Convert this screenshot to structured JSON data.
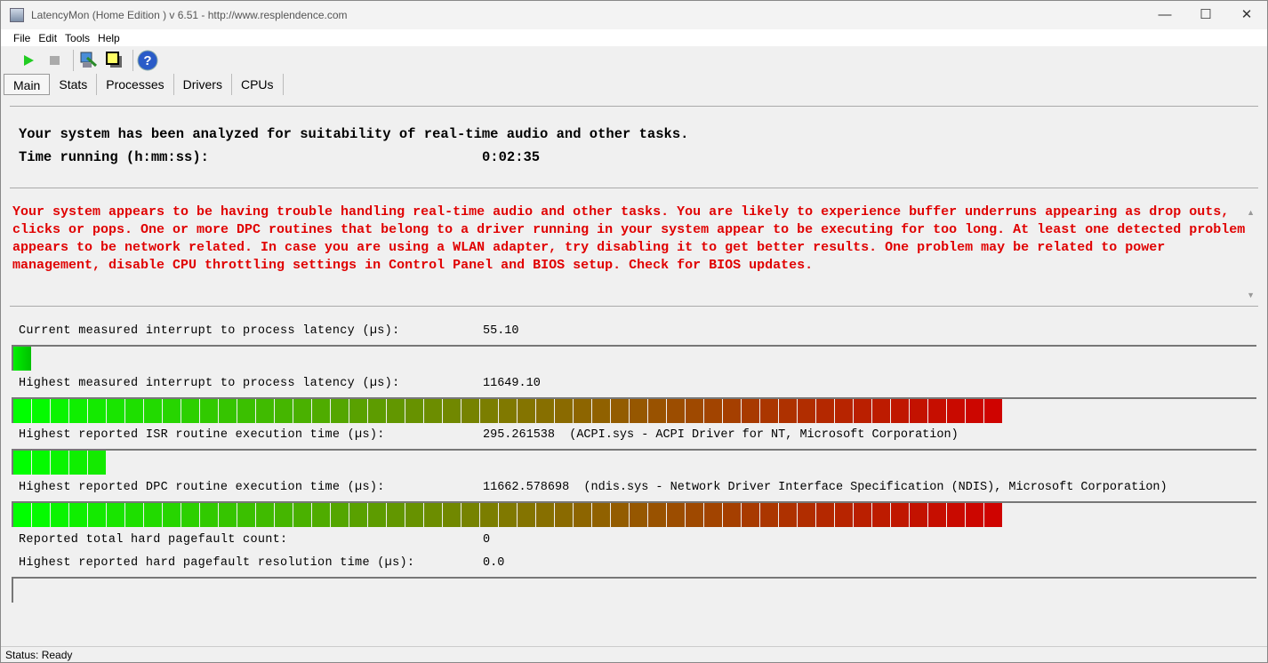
{
  "window": {
    "title": "LatencyMon  (Home Edition )  v 6.51 - http://www.resplendence.com",
    "minimize": "—",
    "maximize": "☐",
    "close": "✕"
  },
  "menu": [
    "File",
    "Edit",
    "Tools",
    "Help"
  ],
  "toolbar": {
    "icons": [
      "play-icon",
      "stop-icon",
      "analyze-icon",
      "windows-icon",
      "help-icon"
    ]
  },
  "tabs": [
    "Main",
    "Stats",
    "Processes",
    "Drivers",
    "CPUs"
  ],
  "active_tab": "Main",
  "summary": {
    "line1": "Your system has been analyzed for suitability of real-time audio and other tasks.",
    "time_label": "Time running (h:mm:ss):",
    "time_value": "0:02:35"
  },
  "message": "Your system appears to be having trouble handling real-time audio and other tasks. You are likely to experience buffer underruns appearing as drop outs, clicks or pops. One or more DPC routines that belong to a driver running in your system appear to be executing for too long. At least one detected problem appears to be network related. In case you are using a WLAN adapter, try disabling it to get better results. One problem may be related to power management, disable CPU throttling settings in Control Panel and BIOS setup. Check for BIOS updates.",
  "metrics": [
    {
      "label": "Current measured interrupt to process latency (µs):",
      "value": "55.10",
      "level": 0.014
    },
    {
      "label": "Highest measured interrupt to process latency (µs):",
      "value": "11649.10",
      "level": 0.794
    },
    {
      "label": "Highest reported ISR routine execution time (µs):",
      "value": "295.261538  (ACPI.sys - ACPI Driver for NT, Microsoft Corporation)",
      "level": 0.077
    },
    {
      "label": "Highest reported DPC routine execution time (µs):",
      "value": "11662.578698  (ndis.sys - Network Driver Interface Specification (NDIS), Microsoft Corporation)",
      "level": 0.8
    },
    {
      "label": "Reported total hard pagefault count:",
      "value": "0"
    },
    {
      "label": "Highest reported hard pagefault resolution time (µs):",
      "value": "0.0",
      "level": 0
    }
  ],
  "status": "Status: Ready",
  "colors": {
    "message": "#e00000",
    "bar_start": "#00ff00",
    "bar_end": "#d00000"
  }
}
